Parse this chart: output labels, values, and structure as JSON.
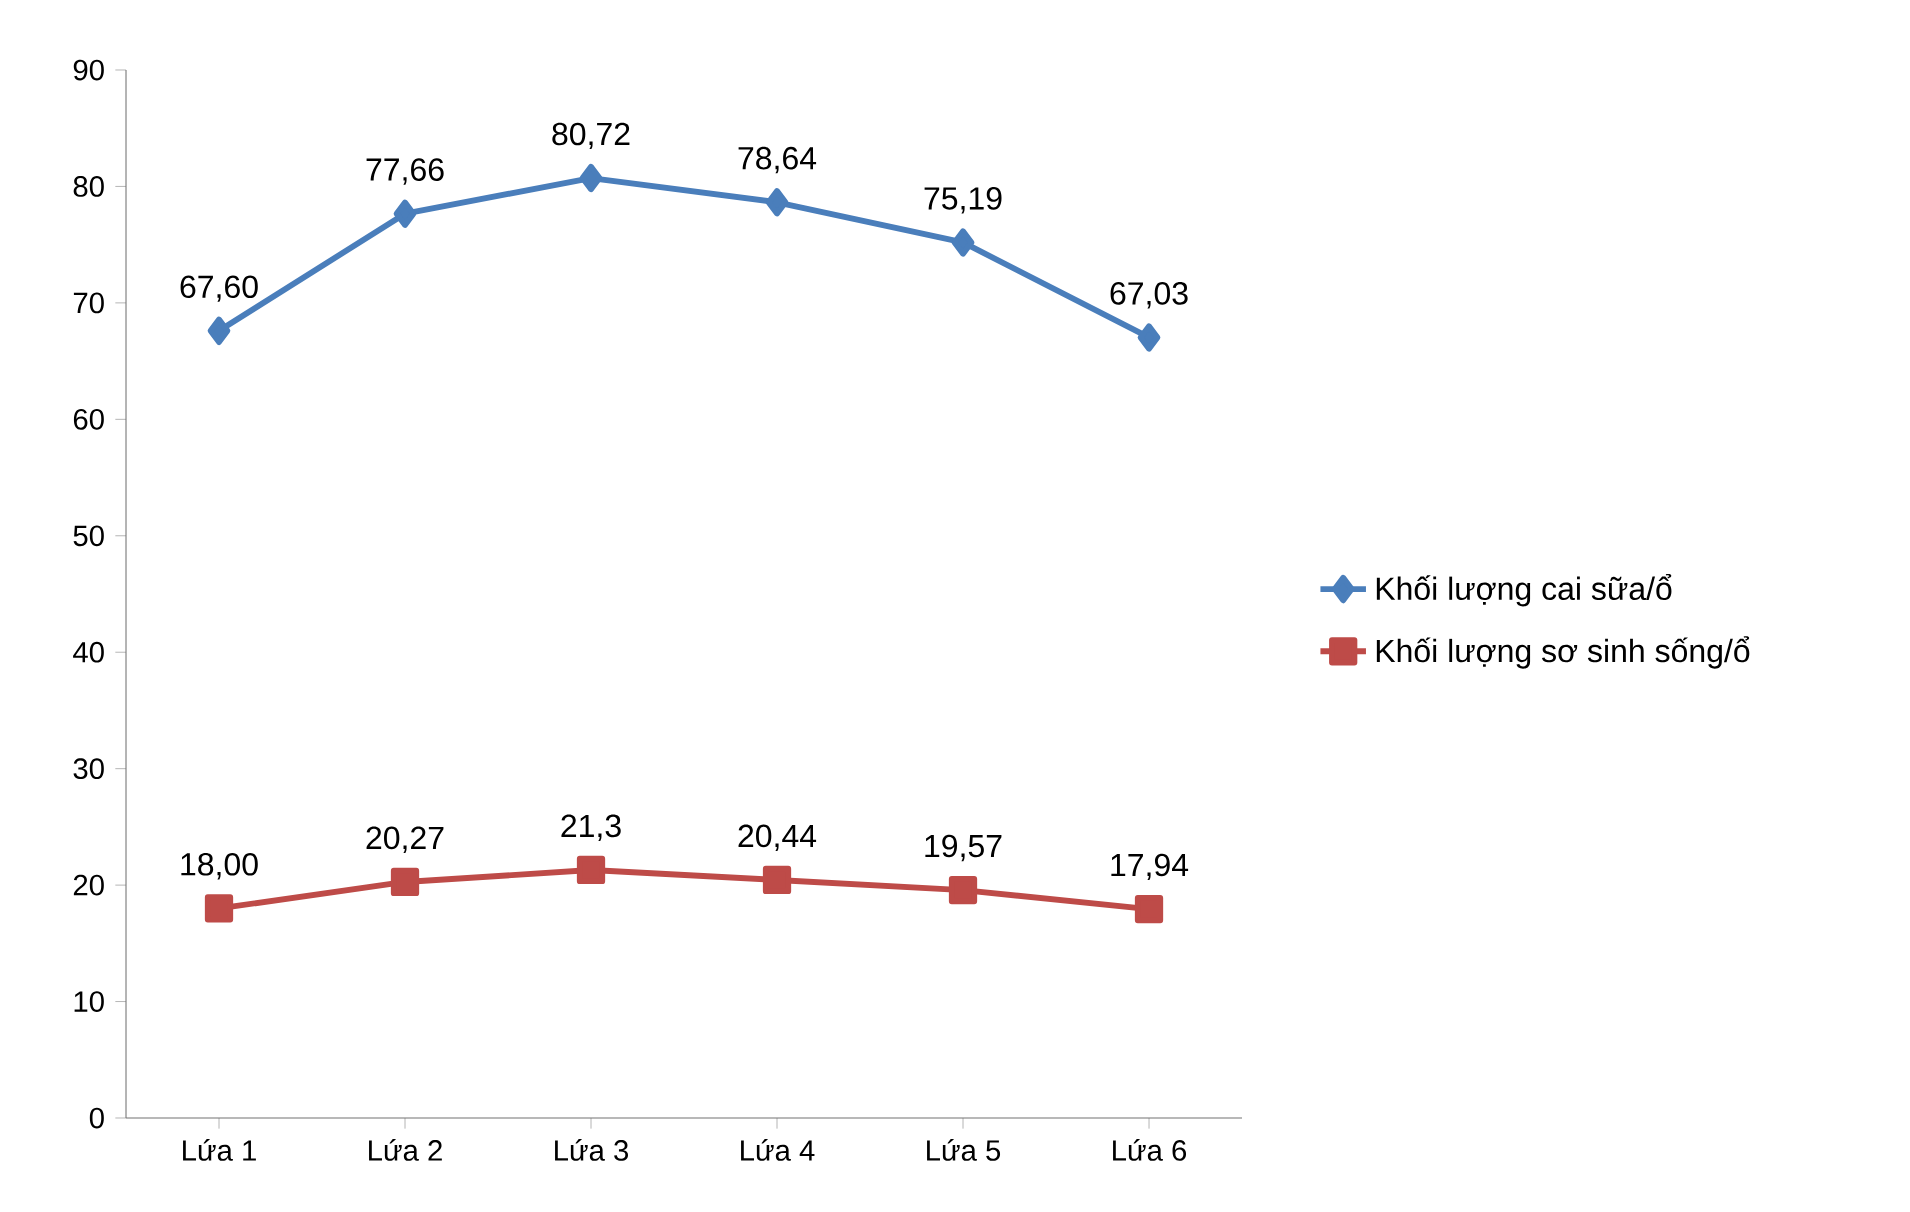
{
  "chart_data": {
    "type": "line",
    "categories": [
      "Lứa 1",
      "Lứa 2",
      "Lứa 3",
      "Lứa 4",
      "Lứa 5",
      "Lứa 6"
    ],
    "series": [
      {
        "name": "Khối lượng cai sữa/ổ",
        "color": "#4a7ebb",
        "marker": "diamond",
        "values": [
          67.6,
          77.66,
          80.72,
          78.64,
          75.19,
          67.03
        ],
        "value_labels": [
          "67,60",
          "77,66",
          "80,72",
          "78,64",
          "75,19",
          "67,03"
        ]
      },
      {
        "name": "Khối lượng sơ sinh sống/ổ",
        "color": "#be4b48",
        "marker": "square",
        "values": [
          18.0,
          20.27,
          21.3,
          20.44,
          19.57,
          17.94
        ],
        "value_labels": [
          "18,00",
          "20,27",
          "21,3",
          "20,44",
          "19,57",
          "17,94"
        ]
      }
    ],
    "ylim": [
      0,
      90
    ],
    "yticks": [
      0,
      10,
      20,
      30,
      40,
      50,
      60,
      70,
      80,
      90
    ],
    "grid": false,
    "legend": "right",
    "line_style": "solid"
  }
}
